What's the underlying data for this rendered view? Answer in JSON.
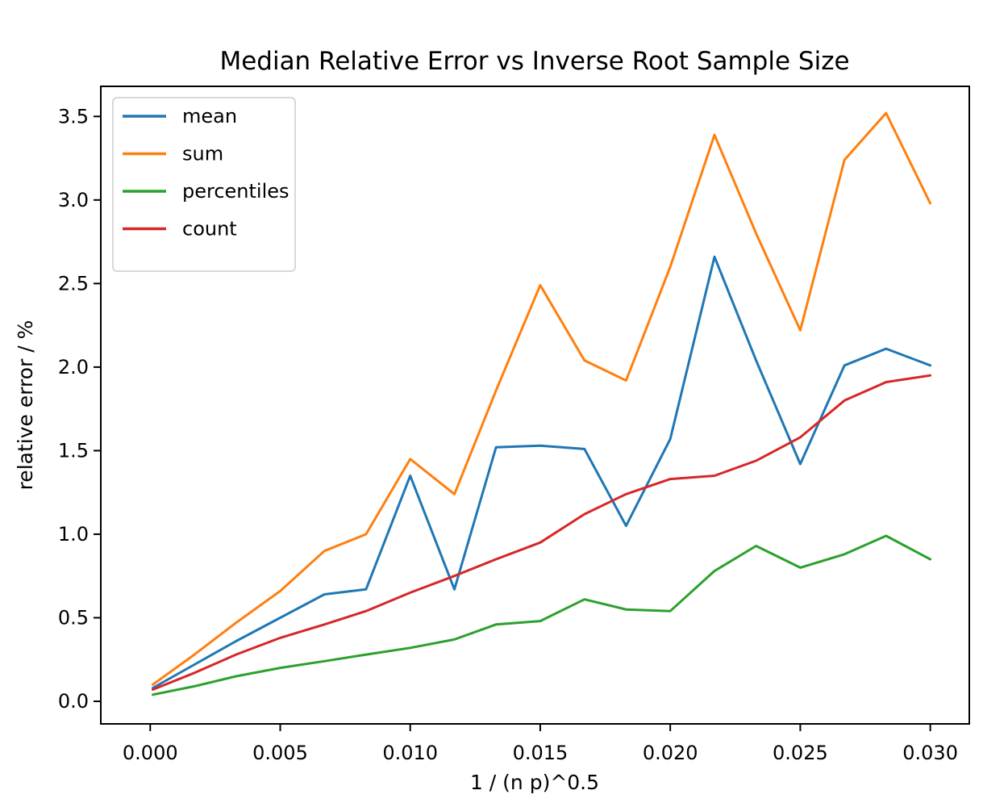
{
  "chart_data": {
    "type": "line",
    "title": "Median Relative Error vs Inverse Root Sample Size",
    "xlabel": "1 / (n p)^0.5",
    "ylabel": "relative error / %",
    "grid": false,
    "legend_position": "upper left",
    "xlim": [
      -0.0019,
      0.0315
    ],
    "ylim": [
      -0.135,
      3.68
    ],
    "xticks": {
      "values": [
        0.0,
        0.005,
        0.01,
        0.015,
        0.02,
        0.025,
        0.03
      ],
      "labels": [
        "0.000",
        "0.005",
        "0.010",
        "0.015",
        "0.020",
        "0.025",
        "0.030"
      ]
    },
    "yticks": {
      "values": [
        0.0,
        0.5,
        1.0,
        1.5,
        2.0,
        2.5,
        3.0,
        3.5
      ],
      "labels": [
        "0.0",
        "0.5",
        "1.0",
        "1.5",
        "2.0",
        "2.5",
        "3.0",
        "3.5"
      ]
    },
    "x": [
      0.0001,
      0.0017,
      0.0033,
      0.005,
      0.0067,
      0.0083,
      0.01,
      0.0117,
      0.0133,
      0.015,
      0.0167,
      0.0183,
      0.02,
      0.0217,
      0.0233,
      0.025,
      0.0267,
      0.0283,
      0.03
    ],
    "series": [
      {
        "name": "mean",
        "color": "#1f77b4",
        "values": [
          0.08,
          0.22,
          0.36,
          0.5,
          0.64,
          0.67,
          1.35,
          0.67,
          1.52,
          1.53,
          1.51,
          1.05,
          1.57,
          2.66,
          2.04,
          1.42,
          2.01,
          2.11,
          2.01
        ]
      },
      {
        "name": "sum",
        "color": "#ff7f0e",
        "values": [
          0.1,
          0.28,
          0.47,
          0.66,
          0.9,
          1.0,
          1.45,
          1.24,
          1.86,
          2.49,
          2.04,
          1.92,
          2.6,
          3.39,
          2.8,
          2.22,
          3.24,
          3.52,
          2.98
        ]
      },
      {
        "name": "percentiles",
        "color": "#2ca02c",
        "values": [
          0.04,
          0.09,
          0.15,
          0.2,
          0.24,
          0.28,
          0.32,
          0.37,
          0.46,
          0.48,
          0.61,
          0.55,
          0.54,
          0.78,
          0.93,
          0.8,
          0.88,
          0.99,
          0.85
        ]
      },
      {
        "name": "count",
        "color": "#d62728",
        "values": [
          0.07,
          0.17,
          0.28,
          0.38,
          0.46,
          0.54,
          0.65,
          0.75,
          0.85,
          0.95,
          1.12,
          1.24,
          1.33,
          1.35,
          1.44,
          1.58,
          1.8,
          1.91,
          1.95
        ]
      }
    ]
  }
}
